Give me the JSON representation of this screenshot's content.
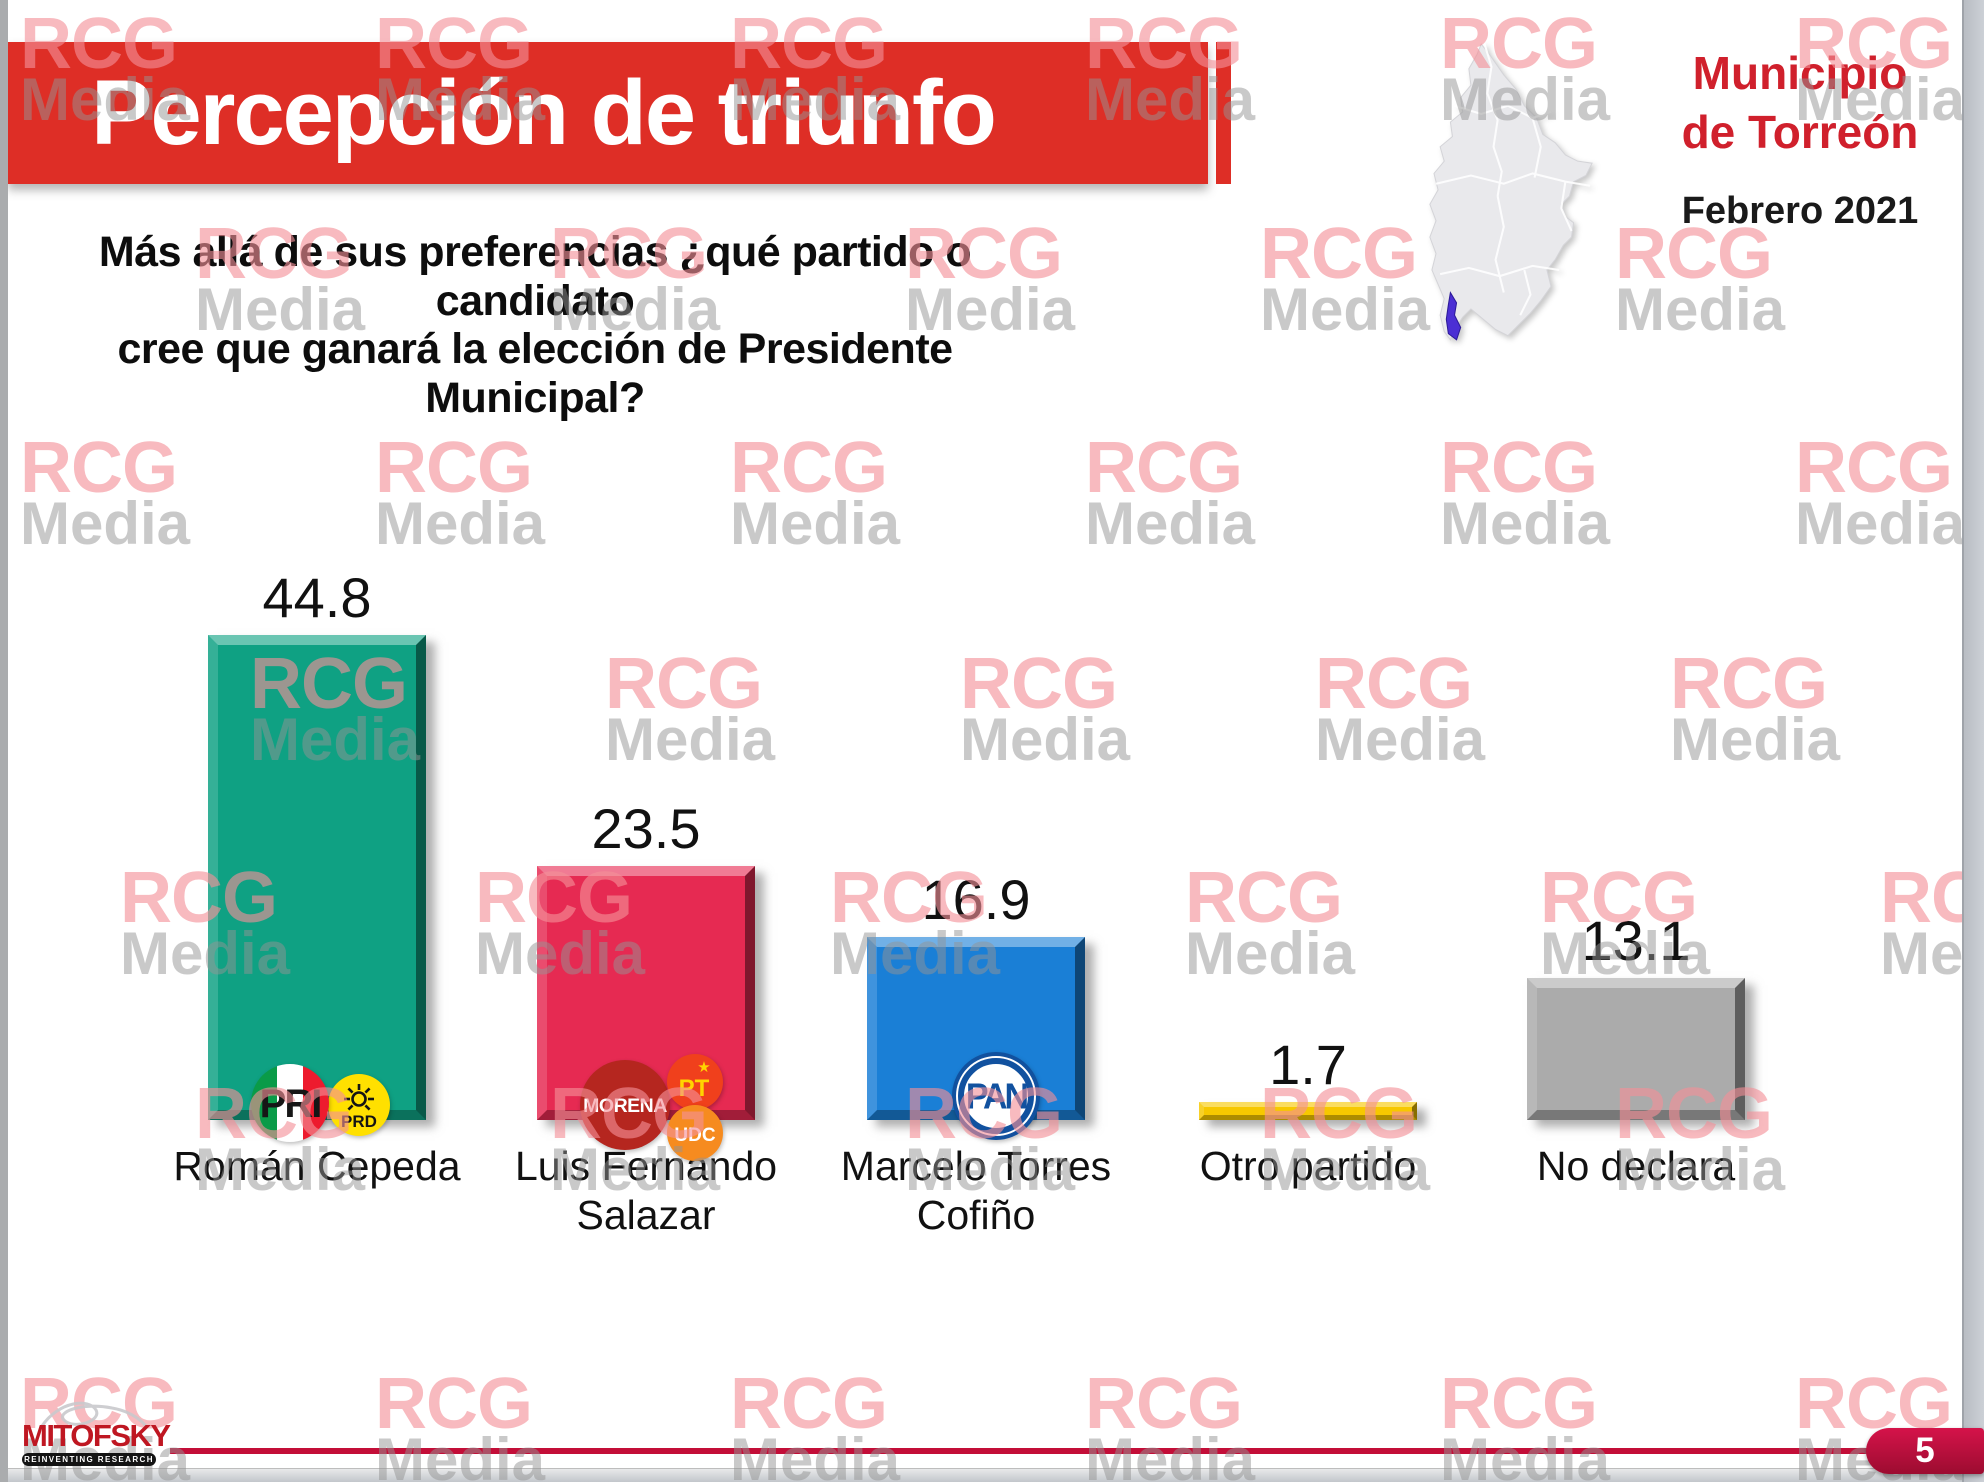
{
  "slide": {
    "title": "Percepción de triunfo",
    "region_line1": "Municipio",
    "region_line2": "de Torreón",
    "date": "Febrero 2021",
    "question_line1": "Más allá de sus preferencias ¿qué partido o candidato",
    "question_line2": "cree que ganará la elección de Presidente Municipal?",
    "page_number": "5",
    "watermark": {
      "line1": "RCG",
      "line2": "Media"
    },
    "footer_logo": {
      "name": "MITOFSKY",
      "tagline": "REINVENTING RESEARCH"
    },
    "colors": {
      "banner_red": "#de2e26",
      "accent_crimson": "#c30e38",
      "region_text_red": "#d0202c",
      "map_highlight_purple": "#4b2fd4"
    }
  },
  "chart_data": {
    "type": "bar",
    "title": "Percepción de triunfo",
    "subtitle": "Municipio de Torreón — Febrero 2021",
    "categories": [
      "Román Cepeda",
      "Luis Fernando Salazar",
      "Marcelo Torres Cofiño",
      "Otro partido",
      "No declara"
    ],
    "values": [
      44.8,
      23.5,
      16.9,
      1.7,
      13.1
    ],
    "bar_colors": [
      "#0fa183",
      "#e62a52",
      "#1a7fd6",
      "#f7c800",
      "#ababab"
    ],
    "bar_party_logos": [
      [
        "PRI",
        "PRD"
      ],
      [
        "MORENA",
        "PT",
        "UDC"
      ],
      [
        "PAN"
      ],
      [],
      []
    ],
    "value_labels_above_bars": true,
    "ylim": [
      0,
      50
    ],
    "grid": false,
    "legend": false,
    "xlabel": "",
    "ylabel": ""
  }
}
